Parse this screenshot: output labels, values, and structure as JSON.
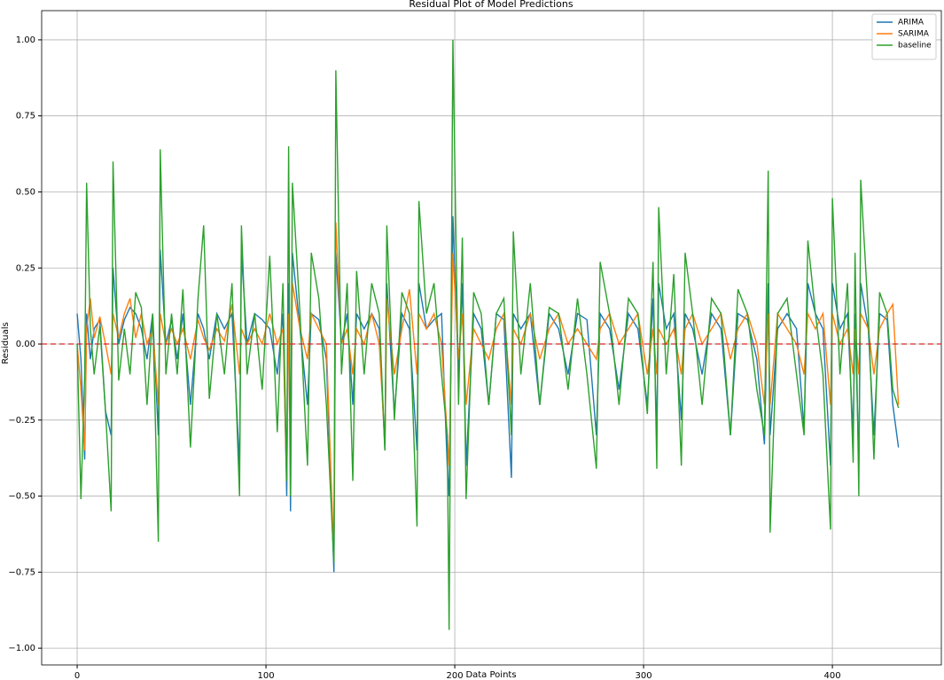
{
  "chart_data": {
    "type": "line",
    "title": "Residual Plot of Model Predictions",
    "x_label": "Data Points",
    "y_label": "Residuals",
    "x": [
      0,
      2,
      4,
      5,
      7,
      9,
      12,
      15,
      18,
      19,
      22,
      25,
      28,
      31,
      34,
      37,
      40,
      43,
      44,
      47,
      50,
      53,
      56,
      60,
      64,
      67,
      70,
      74,
      78,
      82,
      86,
      87,
      90,
      94,
      98,
      102,
      106,
      109,
      111,
      112,
      113,
      114,
      118,
      122,
      124,
      128,
      132,
      136,
      137,
      140,
      143,
      146,
      148,
      152,
      156,
      160,
      163,
      164,
      168,
      172,
      176,
      180,
      181,
      185,
      189,
      193,
      196,
      197,
      199,
      202,
      204,
      206,
      210,
      214,
      218,
      222,
      226,
      230,
      231,
      235,
      240,
      245,
      250,
      255,
      260,
      265,
      270,
      275,
      277,
      282,
      287,
      292,
      297,
      302,
      305,
      307,
      308,
      312,
      316,
      320,
      322,
      326,
      331,
      336,
      341,
      346,
      350,
      355,
      360,
      364,
      366,
      367,
      371,
      376,
      381,
      385,
      387,
      391,
      395,
      399,
      400,
      404,
      408,
      411,
      412,
      414,
      415,
      419,
      422,
      425,
      429,
      432,
      435
    ],
    "series": [
      {
        "name": "ARIMA",
        "color": "#1f77b4",
        "values": [
          0.1,
          -0.05,
          -0.38,
          0.1,
          -0.05,
          0.05,
          0.08,
          -0.22,
          -0.3,
          0.25,
          0,
          0.08,
          0.12,
          0.1,
          0.05,
          -0.05,
          0.1,
          -0.3,
          0.31,
          0,
          0.08,
          -0.05,
          0.1,
          -0.2,
          0.1,
          0.05,
          -0.05,
          0.1,
          0.05,
          0.1,
          -0.4,
          0.3,
          0,
          0.1,
          0.08,
          0.05,
          -0.1,
          0.1,
          -0.5,
          0.2,
          -0.55,
          0.3,
          0.05,
          -0.2,
          0.1,
          0.08,
          -0.05,
          -0.75,
          0.3,
          0,
          0.1,
          -0.2,
          0.1,
          0.05,
          0.1,
          0.05,
          -0.35,
          0.2,
          -0.23,
          0.1,
          0.05,
          -0.35,
          0.2,
          0.05,
          0.08,
          0.1,
          -0.4,
          -0.5,
          0.42,
          -0.1,
          0.2,
          -0.4,
          0.1,
          0.05,
          -0.2,
          0.1,
          0.08,
          -0.44,
          0.1,
          0.05,
          0.1,
          -0.2,
          0.1,
          0.05,
          -0.1,
          0.1,
          0.08,
          -0.3,
          0.1,
          0.05,
          -0.15,
          0.1,
          0.05,
          -0.2,
          0.15,
          -0.3,
          0.2,
          0.05,
          0.1,
          -0.25,
          0.1,
          0.05,
          -0.1,
          0.1,
          0.05,
          -0.3,
          0.1,
          0.08,
          -0.05,
          -0.33,
          0.2,
          -0.3,
          0.05,
          0.1,
          0.05,
          -0.28,
          0.2,
          0.1,
          0.05,
          -0.4,
          0.2,
          0.05,
          0.1,
          -0.3,
          0.1,
          -0.4,
          0.2,
          0.05,
          -0.3,
          0.1,
          0.08,
          -0.2,
          -0.34
        ]
      },
      {
        "name": "SARIMA",
        "color": "#ff7f0e",
        "values": [
          0,
          -0.15,
          -0.35,
          0.05,
          0.15,
          0.02,
          0.09,
          0,
          -0.1,
          0.1,
          0.02,
          0.1,
          0.15,
          0.02,
          0.1,
          0,
          0.05,
          -0.2,
          0.1,
          0,
          0.05,
          0,
          0.05,
          -0.05,
          0.08,
          0.02,
          -0.02,
          0.05,
          0.01,
          0.13,
          -0.1,
          0.05,
          0,
          0.05,
          0,
          0.1,
          0,
          0.05,
          -0.45,
          0.1,
          -0.3,
          0.2,
          0.05,
          -0.05,
          0.1,
          0.05,
          0,
          -0.7,
          0.4,
          0,
          0.05,
          -0.1,
          0.05,
          0,
          0.1,
          0,
          -0.33,
          0.15,
          -0.1,
          0.05,
          0.18,
          -0.1,
          0.1,
          0.05,
          0.1,
          0,
          -0.3,
          -0.4,
          0.3,
          -0.05,
          0.1,
          -0.2,
          0.05,
          0,
          -0.05,
          0.05,
          0.1,
          -0.2,
          0.05,
          0,
          0.1,
          -0.05,
          0.05,
          0.1,
          0,
          0.05,
          0,
          -0.05,
          0.05,
          0.1,
          0,
          0.05,
          0.1,
          -0.1,
          0.05,
          -0.1,
          0.05,
          0,
          0.05,
          -0.1,
          0.05,
          0.1,
          0,
          0.05,
          0.1,
          -0.05,
          0.05,
          0.1,
          0,
          -0.2,
          0.1,
          -0.2,
          0.1,
          0.05,
          0,
          -0.1,
          0.1,
          0.05,
          0.1,
          -0.2,
          0.1,
          0,
          0.05,
          -0.1,
          0.05,
          -0.1,
          0.1,
          0.05,
          -0.1,
          0.05,
          0.1,
          0.13,
          -0.2
        ]
      },
      {
        "name": "baseline",
        "color": "#2ca02c",
        "values": [
          0,
          -0.51,
          -0.1,
          0.53,
          0.05,
          -0.1,
          0.06,
          -0.22,
          -0.55,
          0.6,
          -0.12,
          0.05,
          -0.1,
          0.17,
          0.12,
          -0.2,
          0.1,
          -0.65,
          0.64,
          -0.1,
          0.1,
          -0.1,
          0.18,
          -0.34,
          0.15,
          0.39,
          -0.18,
          0.1,
          -0.1,
          0.2,
          -0.5,
          0.39,
          -0.1,
          0.1,
          -0.15,
          0.29,
          -0.29,
          0.2,
          -0.45,
          0.65,
          -0.5,
          0.53,
          0.1,
          -0.4,
          0.3,
          0.15,
          -0.2,
          -0.72,
          0.9,
          -0.1,
          0.2,
          -0.45,
          0.24,
          -0.1,
          0.2,
          0.1,
          -0.35,
          0.39,
          -0.25,
          0.17,
          0.1,
          -0.6,
          0.47,
          0.1,
          0.2,
          -0.1,
          -0.3,
          -0.94,
          1.0,
          -0.2,
          0.35,
          -0.51,
          0.17,
          0.1,
          -0.2,
          0.1,
          0.15,
          -0.3,
          0.37,
          -0.1,
          0.2,
          -0.2,
          0.12,
          0.1,
          -0.15,
          0.15,
          -0.1,
          -0.41,
          0.27,
          0.1,
          -0.2,
          0.15,
          0.1,
          -0.23,
          0.27,
          -0.41,
          0.45,
          -0.1,
          0.23,
          -0.4,
          0.3,
          0.1,
          -0.2,
          0.15,
          0.1,
          -0.3,
          0.18,
          0.1,
          -0.15,
          -0.3,
          0.57,
          -0.62,
          0.1,
          0.15,
          -0.1,
          -0.3,
          0.34,
          0.1,
          -0.1,
          -0.61,
          0.48,
          -0.1,
          0.2,
          -0.39,
          0.3,
          -0.5,
          0.54,
          0.1,
          -0.38,
          0.17,
          0.1,
          -0.15,
          -0.21
        ]
      }
    ],
    "hline": 0,
    "hline_color": "#d62728",
    "xlim": [
      -18.8,
      457.7
    ],
    "ylim": [
      -1.055,
      1.096
    ],
    "xticks": [
      0,
      100,
      200,
      300,
      400
    ],
    "yticks": [
      {
        "value": -1,
        "label": "−1.00"
      },
      {
        "value": -0.75,
        "label": "−0.75"
      },
      {
        "value": -0.5,
        "label": "−0.50"
      },
      {
        "value": -0.25,
        "label": "−0.25"
      },
      {
        "value": 0,
        "label": "0.00"
      },
      {
        "value": 0.25,
        "label": "0.25"
      },
      {
        "value": 0.5,
        "label": "0.50"
      },
      {
        "value": 0.75,
        "label": "0.75"
      },
      {
        "value": 1,
        "label": "1.00"
      }
    ],
    "grid": true,
    "legend": "upper right"
  }
}
